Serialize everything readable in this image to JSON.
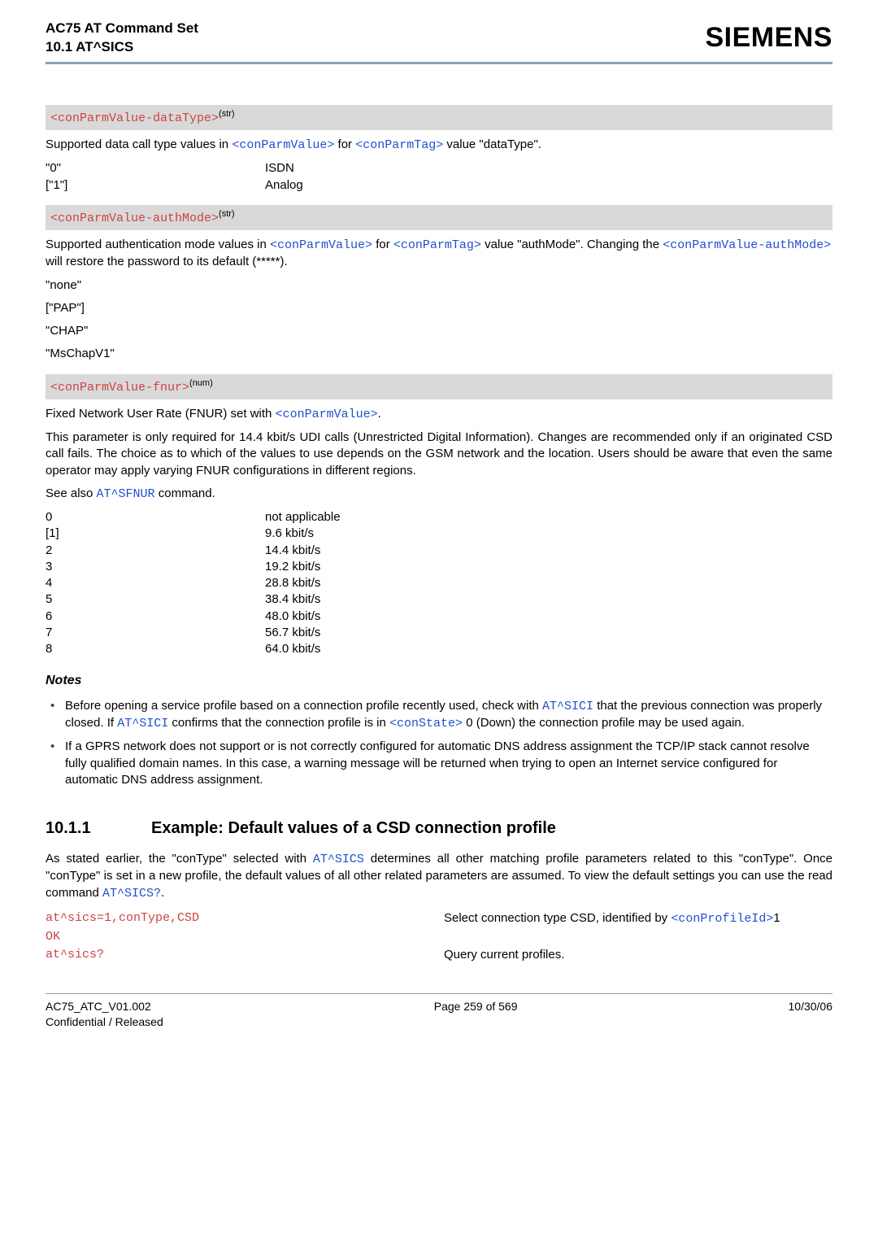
{
  "header": {
    "title_line1": "AC75 AT Command Set",
    "title_line2": "10.1 AT^SICS",
    "brand": "SIEMENS"
  },
  "block_dataType": {
    "label_code": "<conParmValue-dataType>",
    "label_sup": "(str)",
    "desc_pre": "Supported data call type values in ",
    "desc_code1": "<conParmValue>",
    "desc_mid": " for ",
    "desc_code2": "<conParmTag>",
    "desc_post": " value \"dataType\".",
    "rows": [
      {
        "k": "\"0\"",
        "v": "ISDN"
      },
      {
        "k": "[\"1\"]",
        "v": "Analog"
      }
    ]
  },
  "block_authMode": {
    "label_code": "<conParmValue-authMode>",
    "label_sup": "(str)",
    "desc_pre": "Supported authentication mode values in ",
    "desc_code1": "<conParmValue>",
    "desc_mid1": " for ",
    "desc_code2": "<conParmTag>",
    "desc_mid2": " value \"authMode\". Changing the ",
    "desc_code3": "<conParmValue-authMode>",
    "desc_post": " will restore the password to its default (*****).",
    "items": [
      "\"none\"",
      "[\"PAP\"]",
      "\"CHAP\"",
      "\"MsChapV1\""
    ]
  },
  "block_fnur": {
    "label_code": "<conParmValue-fnur>",
    "label_sup": "(num)",
    "p1_pre": "Fixed Network User Rate (FNUR) set with ",
    "p1_code": "<conParmValue>",
    "p1_post": ".",
    "p2": "This parameter is only required for 14.4 kbit/s UDI calls (Unrestricted Digital Information). Changes are recommended only if an originated CSD call fails. The choice as to which of the values to use depends on the GSM network and the location. Users should be aware that even the same operator may apply varying FNUR configurations in different regions.",
    "p3_pre": "See also ",
    "p3_code": "AT^SFNUR",
    "p3_post": " command.",
    "rows": [
      {
        "k": "0",
        "v": "not applicable"
      },
      {
        "k": "[1]",
        "v": "9.6 kbit/s"
      },
      {
        "k": "2",
        "v": "14.4 kbit/s"
      },
      {
        "k": "3",
        "v": "19.2 kbit/s"
      },
      {
        "k": "4",
        "v": "28.8 kbit/s"
      },
      {
        "k": "5",
        "v": "38.4 kbit/s"
      },
      {
        "k": "6",
        "v": "48.0 kbit/s"
      },
      {
        "k": "7",
        "v": "56.7 kbit/s"
      },
      {
        "k": "8",
        "v": "64.0 kbit/s"
      }
    ]
  },
  "notes": {
    "title": "Notes",
    "item1": {
      "t1": "Before opening a service profile based on a connection profile recently used, check with ",
      "c1": "AT^SICI",
      "t2": " that the previous connection was properly closed. If ",
      "c2": "AT^SICI",
      "t3": " confirms that the connection profile is in ",
      "c3": "<conState>",
      "t4": " 0 (Down) the connection profile may be used again."
    },
    "item2": "If a GPRS network does not support or is not correctly configured for automatic DNS address assignment the TCP/IP stack cannot resolve fully qualified domain names. In this case, a warning message will be returned when trying to open an Internet service configured for automatic DNS address assignment."
  },
  "h2": {
    "num": "10.1.1",
    "text": "Example: Default values of a CSD connection profile"
  },
  "h2para": {
    "t1": "As stated earlier, the \"conType\" selected with ",
    "c1": "AT^SICS",
    "t2": " determines all other matching profile parameters related to this \"conType\". Once \"conType\" is set in a new profile, the default values of all other related parameters are assumed. To view the default settings you can use the read command ",
    "c2": "AT^SICS?",
    "t3": "."
  },
  "codeblock": {
    "r1_cmd": "at^sics=1,conType,CSD",
    "r1_txt_pre": "Select connection type CSD, identified by ",
    "r1_code": "<conProfileId>",
    "r1_txt_post": "1",
    "r2_cmd": "OK",
    "r3_cmd": "at^sics?",
    "r3_txt": "Query current profiles."
  },
  "footer": {
    "left1": "AC75_ATC_V01.002",
    "left2": "Confidential / Released",
    "center": "Page 259 of 569",
    "right": "10/30/06"
  }
}
